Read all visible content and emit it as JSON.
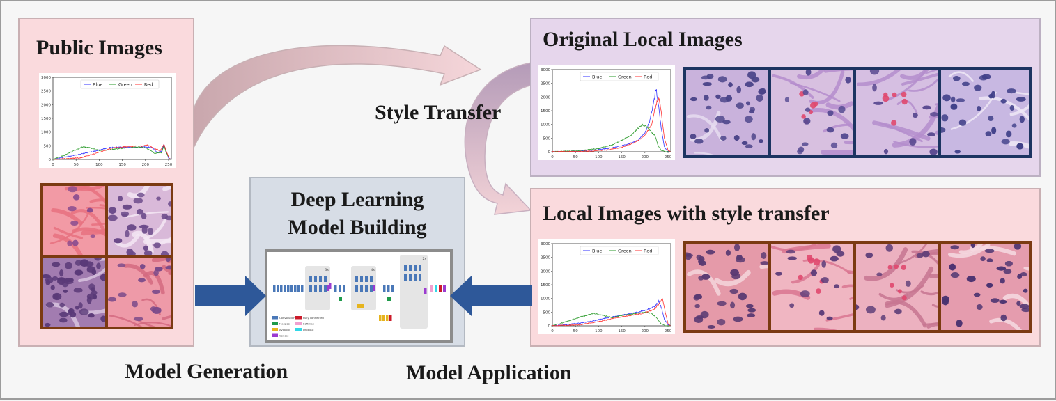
{
  "panels": {
    "public": {
      "title": "Public Images"
    },
    "original": {
      "title": "Original Local Images"
    },
    "transferred": {
      "title": "Local Images with style transfer"
    },
    "model": {
      "title_line1": "Deep Learning",
      "title_line2": "Model Building"
    }
  },
  "labels": {
    "style_transfer": "Style Transfer",
    "model_generation": "Model Generation",
    "model_application": "Model Application"
  },
  "colors": {
    "pink_panel": "#fadadd",
    "purple_panel": "#e6d6ec",
    "gray_panel": "#d7dde6",
    "arrow_blue": "#2e5899",
    "frame_brown": "#7b3a12",
    "frame_navy": "#1c3461"
  },
  "chart_data": [
    {
      "type": "line",
      "title": "",
      "xlabel": "",
      "ylabel": "",
      "xlim": [
        0,
        256
      ],
      "ylim": [
        0,
        3000
      ],
      "xticks": [
        "0",
        "50",
        "100",
        "150",
        "200",
        "250"
      ],
      "yticks": [
        "0",
        "500",
        "1000",
        "1500",
        "2000",
        "2500",
        "3000"
      ],
      "legend": "top-center",
      "series": [
        {
          "name": "Blue",
          "color": "#3030ff",
          "points": [
            [
              0,
              0
            ],
            [
              30,
              100
            ],
            [
              60,
              200
            ],
            [
              90,
              300
            ],
            [
              120,
              430
            ],
            [
              150,
              450
            ],
            [
              180,
              430
            ],
            [
              200,
              470
            ],
            [
              215,
              420
            ],
            [
              225,
              250
            ],
            [
              235,
              300
            ],
            [
              240,
              580
            ],
            [
              244,
              350
            ],
            [
              250,
              50
            ],
            [
              255,
              0
            ]
          ]
        },
        {
          "name": "Green",
          "color": "#2a9a2a",
          "points": [
            [
              0,
              0
            ],
            [
              25,
              150
            ],
            [
              45,
              320
            ],
            [
              65,
              460
            ],
            [
              80,
              420
            ],
            [
              100,
              330
            ],
            [
              120,
              350
            ],
            [
              150,
              410
            ],
            [
              180,
              450
            ],
            [
              200,
              430
            ],
            [
              220,
              230
            ],
            [
              235,
              250
            ],
            [
              240,
              500
            ],
            [
              245,
              250
            ],
            [
              252,
              20
            ],
            [
              255,
              0
            ]
          ]
        },
        {
          "name": "Red",
          "color": "#ff3030",
          "points": [
            [
              0,
              0
            ],
            [
              60,
              60
            ],
            [
              100,
              260
            ],
            [
              130,
              420
            ],
            [
              160,
              470
            ],
            [
              190,
              490
            ],
            [
              205,
              520
            ],
            [
              220,
              400
            ],
            [
              232,
              320
            ],
            [
              240,
              560
            ],
            [
              245,
              300
            ],
            [
              252,
              20
            ],
            [
              255,
              0
            ]
          ]
        }
      ]
    },
    {
      "type": "line",
      "title": "",
      "xlabel": "",
      "ylabel": "",
      "xlim": [
        0,
        256
      ],
      "ylim": [
        0,
        3000
      ],
      "xticks": [
        "0",
        "50",
        "100",
        "150",
        "200",
        "250"
      ],
      "yticks": [
        "0",
        "500",
        "1000",
        "1500",
        "2000",
        "2500",
        "3000"
      ],
      "legend": "top-center",
      "series": [
        {
          "name": "Blue",
          "color": "#3030ff",
          "points": [
            [
              0,
              0
            ],
            [
              60,
              30
            ],
            [
              100,
              80
            ],
            [
              130,
              150
            ],
            [
              160,
              260
            ],
            [
              185,
              420
            ],
            [
              200,
              700
            ],
            [
              210,
              1100
            ],
            [
              218,
              1700
            ],
            [
              224,
              2300
            ],
            [
              228,
              1900
            ],
            [
              235,
              900
            ],
            [
              242,
              200
            ],
            [
              248,
              30
            ],
            [
              255,
              0
            ]
          ]
        },
        {
          "name": "Green",
          "color": "#2a9a2a",
          "points": [
            [
              0,
              0
            ],
            [
              60,
              40
            ],
            [
              100,
              120
            ],
            [
              130,
              260
            ],
            [
              150,
              420
            ],
            [
              170,
              600
            ],
            [
              185,
              850
            ],
            [
              195,
              1000
            ],
            [
              205,
              900
            ],
            [
              215,
              700
            ],
            [
              222,
              600
            ],
            [
              228,
              250
            ],
            [
              235,
              60
            ],
            [
              245,
              0
            ],
            [
              255,
              0
            ]
          ]
        },
        {
          "name": "Red",
          "color": "#ff3030",
          "points": [
            [
              0,
              0
            ],
            [
              80,
              20
            ],
            [
              120,
              70
            ],
            [
              150,
              160
            ],
            [
              180,
              350
            ],
            [
              200,
              600
            ],
            [
              215,
              1000
            ],
            [
              222,
              1600
            ],
            [
              230,
              2000
            ],
            [
              235,
              1500
            ],
            [
              242,
              500
            ],
            [
              250,
              60
            ],
            [
              255,
              0
            ]
          ]
        }
      ]
    },
    {
      "type": "line",
      "title": "",
      "xlabel": "",
      "ylabel": "",
      "xlim": [
        0,
        256
      ],
      "ylim": [
        0,
        3000
      ],
      "xticks": [
        "0",
        "50",
        "100",
        "150",
        "200",
        "250"
      ],
      "yticks": [
        "0",
        "500",
        "1000",
        "1500",
        "2000",
        "2500",
        "3000"
      ],
      "legend": "top-center",
      "series": [
        {
          "name": "Blue",
          "color": "#3030ff",
          "points": [
            [
              0,
              0
            ],
            [
              40,
              60
            ],
            [
              80,
              150
            ],
            [
              120,
              300
            ],
            [
              160,
              420
            ],
            [
              190,
              520
            ],
            [
              210,
              620
            ],
            [
              222,
              720
            ],
            [
              230,
              900
            ],
            [
              236,
              650
            ],
            [
              242,
              250
            ],
            [
              250,
              40
            ],
            [
              255,
              0
            ]
          ]
        },
        {
          "name": "Green",
          "color": "#2a9a2a",
          "points": [
            [
              0,
              0
            ],
            [
              30,
              150
            ],
            [
              60,
              320
            ],
            [
              90,
              450
            ],
            [
              110,
              380
            ],
            [
              130,
              300
            ],
            [
              150,
              380
            ],
            [
              180,
              450
            ],
            [
              200,
              500
            ],
            [
              215,
              450
            ],
            [
              225,
              300
            ],
            [
              235,
              80
            ],
            [
              245,
              0
            ],
            [
              255,
              0
            ]
          ]
        },
        {
          "name": "Red",
          "color": "#ff3030",
          "points": [
            [
              0,
              0
            ],
            [
              60,
              40
            ],
            [
              100,
              150
            ],
            [
              140,
              300
            ],
            [
              170,
              380
            ],
            [
              200,
              470
            ],
            [
              220,
              600
            ],
            [
              230,
              800
            ],
            [
              238,
              1000
            ],
            [
              244,
              500
            ],
            [
              250,
              80
            ],
            [
              255,
              0
            ]
          ]
        }
      ]
    }
  ],
  "network": {
    "legend": [
      "Convolution",
      "Maxpool",
      "Avgpool",
      "Concat",
      "Fully connected",
      "Softmax",
      "Dropout"
    ],
    "repeat_labels": [
      "3x",
      "4x",
      "2x"
    ]
  },
  "icons": {
    "arrow_left_in": "big-right-arrow",
    "arrow_right_in": "big-left-arrow",
    "curve_top": "curved-arrow",
    "curve_down": "curved-arrow"
  }
}
